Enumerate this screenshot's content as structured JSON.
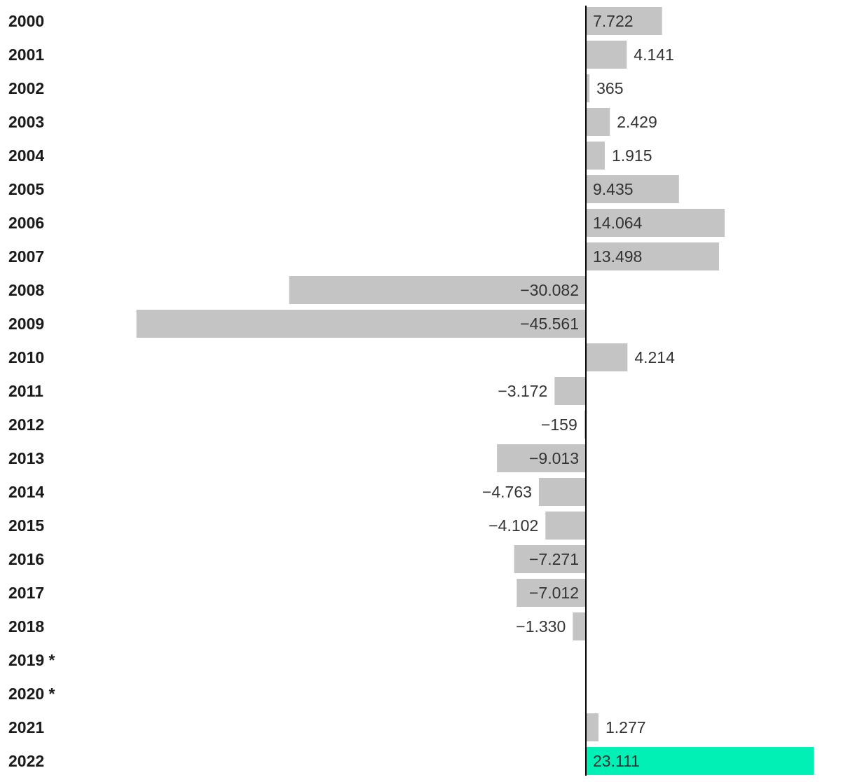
{
  "chart_data": {
    "type": "bar",
    "orientation": "horizontal",
    "categories": [
      "2000",
      "2001",
      "2002",
      "2003",
      "2004",
      "2005",
      "2006",
      "2007",
      "2008",
      "2009",
      "2010",
      "2011",
      "2012",
      "2013",
      "2014",
      "2015",
      "2016",
      "2017",
      "2018",
      "2019 *",
      "2020 *",
      "2021",
      "2022"
    ],
    "values": [
      7722,
      4141,
      365,
      2429,
      1915,
      9435,
      14064,
      13498,
      -30082,
      -45561,
      4214,
      -3172,
      -159,
      -9013,
      -4763,
      -4102,
      -7271,
      -7012,
      -1330,
      null,
      null,
      1277,
      23111
    ],
    "value_labels": [
      "7.722",
      "4.141",
      "365",
      "2.429",
      "1.915",
      "9.435",
      "14.064",
      "13.498",
      "−30.082",
      "−45.561",
      "4.214",
      "−3.172",
      "−159",
      "−9.013",
      "−4.763",
      "−4.102",
      "−7.271",
      "−7.012",
      "−1.330",
      "",
      "",
      "1.277",
      "23.111"
    ],
    "xlim": [
      -52000,
      23400
    ],
    "colors": {
      "default": "#c4c4c4",
      "highlight": "#00f0b5",
      "axis": "#000000"
    },
    "highlight_index": 22,
    "grid": false,
    "legend": "none",
    "title": "",
    "xlabel": "",
    "ylabel": ""
  }
}
